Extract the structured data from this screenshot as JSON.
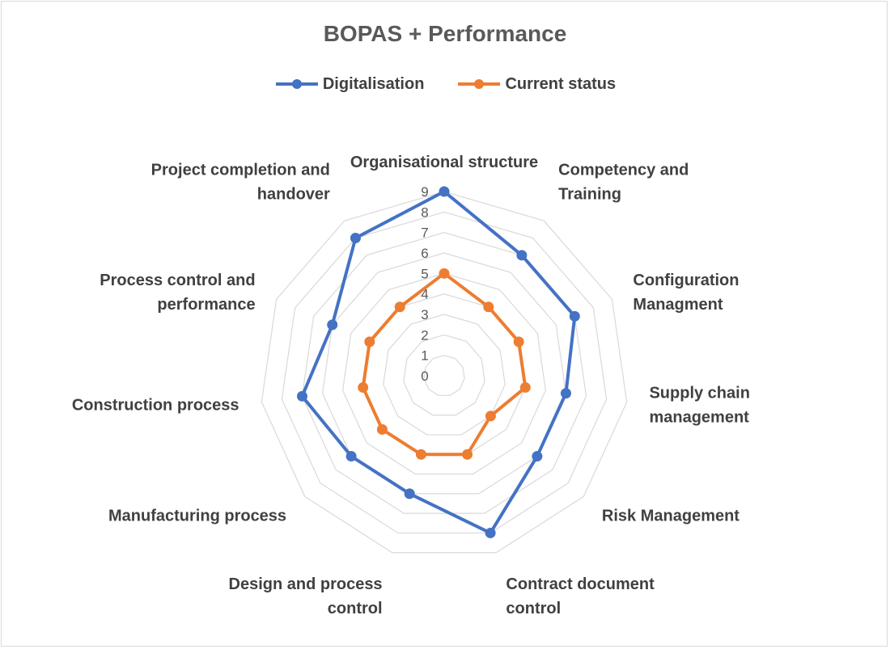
{
  "chart_data": {
    "type": "radar",
    "title": "BOPAS + Performance",
    "categories": [
      "Organisational structure",
      "Competency and Training",
      "Configuration Managment",
      "Supply chain management",
      "Risk Management",
      "Contract document control",
      "Design and process control",
      "Manufacturing process",
      "Construction process",
      "Process control and performance",
      "Project completion and handover"
    ],
    "category_label_lines": [
      [
        "Organisational structure"
      ],
      [
        "Competency and",
        "Training"
      ],
      [
        "Configuration",
        "Managment"
      ],
      [
        "Supply chain",
        "management"
      ],
      [
        "Risk Management"
      ],
      [
        "Contract document",
        "control"
      ],
      [
        "Design and process",
        "control"
      ],
      [
        "Manufacturing process"
      ],
      [
        "Construction process"
      ],
      [
        "Process control and",
        "performance"
      ],
      [
        "Project completion and",
        "handover"
      ]
    ],
    "series": [
      {
        "name": "Digitalisation",
        "color": "#4472c4",
        "values": [
          9,
          7,
          7,
          6,
          6,
          8,
          6,
          6,
          7,
          6,
          8
        ]
      },
      {
        "name": "Current status",
        "color": "#ed7d31",
        "values": [
          5,
          4,
          4,
          4,
          3,
          4,
          4,
          4,
          4,
          4,
          4
        ]
      }
    ],
    "rlim": [
      0,
      9
    ],
    "ticks": [
      "0",
      "1",
      "2",
      "3",
      "4",
      "5",
      "6",
      "7",
      "8",
      "9"
    ],
    "grid": true,
    "legend_position": "top"
  }
}
